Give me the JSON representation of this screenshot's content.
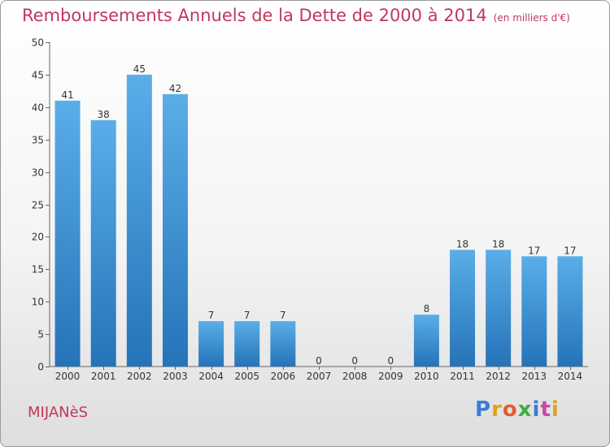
{
  "header": {
    "title": "Remboursements Annuels de la Dette de 2000 à 2014",
    "unit": "(en milliers d'€)"
  },
  "commune": "MIJANèS",
  "logo": {
    "letters": [
      "P",
      "r",
      "o",
      "x",
      "i",
      "t",
      "i"
    ]
  },
  "colors": {
    "title": "#c1385a",
    "bar_top": "#5aaee8",
    "bar_bottom": "#2673b8"
  },
  "chart_data": {
    "type": "bar",
    "title": "Remboursements Annuels de la Dette de 2000 à 2014",
    "subtitle": "(en milliers d'€)",
    "categories": [
      "2000",
      "2001",
      "2002",
      "2003",
      "2004",
      "2005",
      "2006",
      "2007",
      "2008",
      "2009",
      "2010",
      "2011",
      "2012",
      "2013",
      "2014"
    ],
    "values": [
      41,
      38,
      45,
      42,
      7,
      7,
      7,
      0,
      0,
      0,
      8,
      18,
      18,
      17,
      17
    ],
    "xlabel": "",
    "ylabel": "",
    "ylim": [
      0,
      50
    ],
    "yticks": [
      0,
      5,
      10,
      15,
      20,
      25,
      30,
      35,
      40,
      45,
      50
    ],
    "grid": false,
    "legend": "none"
  }
}
